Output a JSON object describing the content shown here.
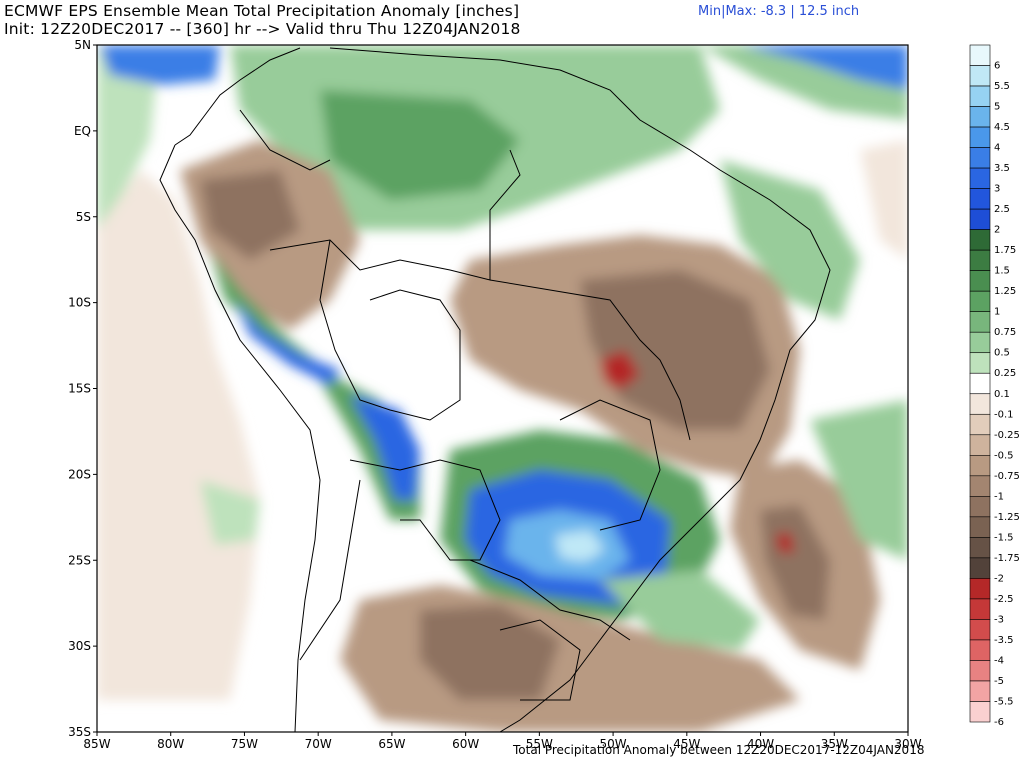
{
  "header": {
    "title": "ECMWF EPS Ensemble Mean Total Precipitation Anomaly [inches]",
    "init_line": "Init: 12Z20DEC2017 -- [360] hr --> Valid thru Thu 12Z04JAN2018",
    "minmax": "Min|Max: -8.3 | 12.5 inch"
  },
  "footer": {
    "caption": "Total Precipitation Anomaly between 12Z20DEC2017-12Z04JAN2018"
  },
  "map": {
    "lat_labels": [
      "5N",
      "EQ",
      "5S",
      "10S",
      "15S",
      "20S",
      "25S",
      "30S",
      "35S"
    ],
    "lon_labels": [
      "85W",
      "80W",
      "75W",
      "70W",
      "65W",
      "60W",
      "55W",
      "50W",
      "45W",
      "40W",
      "35W",
      "30W"
    ]
  },
  "colorbar": {
    "levels": [
      {
        "label": "6",
        "color": "#e8f8fc"
      },
      {
        "label": "5.5",
        "color": "#c0e8f6"
      },
      {
        "label": "5",
        "color": "#96d2f2"
      },
      {
        "label": "4.5",
        "color": "#6ab4ec"
      },
      {
        "label": "4",
        "color": "#4a98ea"
      },
      {
        "label": "3.5",
        "color": "#3a7ee6"
      },
      {
        "label": "3",
        "color": "#2a66e2"
      },
      {
        "label": "2.5",
        "color": "#2256dc"
      },
      {
        "label": "2",
        "color": "#1e4ed6"
      },
      {
        "label": "1.75",
        "color": "#2e6a36"
      },
      {
        "label": "1.5",
        "color": "#3c7c42"
      },
      {
        "label": "1.25",
        "color": "#4a8e50"
      },
      {
        "label": "1",
        "color": "#5ca262"
      },
      {
        "label": "0.75",
        "color": "#78b67c"
      },
      {
        "label": "0.5",
        "color": "#98cc9a"
      },
      {
        "label": "0.25",
        "color": "#bee2bc"
      },
      {
        "label": "0.1",
        "color": "#ffffff"
      },
      {
        "label": "-0.1",
        "color": "#f2e6dc"
      },
      {
        "label": "-0.25",
        "color": "#e2cdbb"
      },
      {
        "label": "-0.5",
        "color": "#ceb39d"
      },
      {
        "label": "-0.75",
        "color": "#b89a82"
      },
      {
        "label": "-1",
        "color": "#a38570"
      },
      {
        "label": "-1.25",
        "color": "#8e7260"
      },
      {
        "label": "-1.5",
        "color": "#7a6252"
      },
      {
        "label": "-1.75",
        "color": "#665246"
      },
      {
        "label": "-2",
        "color": "#52423a"
      },
      {
        "label": "-2.5",
        "color": "#b42828"
      },
      {
        "label": "-3",
        "color": "#c43838"
      },
      {
        "label": "-3.5",
        "color": "#d24c4c"
      },
      {
        "label": "-4",
        "color": "#de6464"
      },
      {
        "label": "-5",
        "color": "#e88282"
      },
      {
        "label": "-5.5",
        "color": "#f2a4a4"
      },
      {
        "label": "-6",
        "color": "#fad0d0"
      }
    ]
  }
}
